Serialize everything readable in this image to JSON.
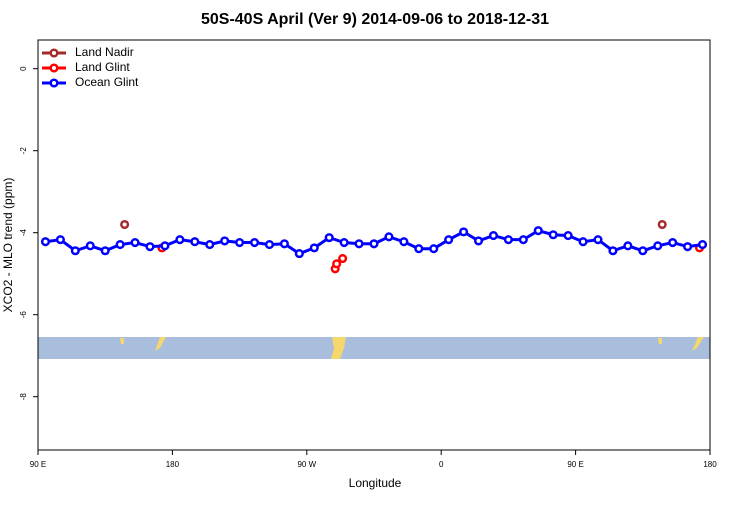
{
  "chart_data": {
    "type": "line",
    "title": "50S-40S April (Ver 9)   2014-09-06 to 2018-12-31",
    "x_label": "Longitude",
    "y_label": "XCO2 - MLO trend (ppm)",
    "xlim": [
      90,
      540
    ],
    "ylim": [
      -9.3,
      0.7
    ],
    "xticks": [
      {
        "value": 90,
        "label": "90 E"
      },
      180,
      {
        "value": 270,
        "label": "90 W"
      },
      {
        "value": 360,
        "label": "0"
      },
      {
        "value": 450,
        "label": "90 E"
      },
      {
        "value": 540,
        "label": "180"
      }
    ],
    "yticks": [
      0,
      -2,
      -4,
      -6,
      -8
    ],
    "legend": "top-left",
    "series": [
      {
        "name": "Land Nadir",
        "color": "#a52a2a",
        "line": false,
        "x": [
          148,
          508
        ],
        "values": [
          -3.8,
          -3.8
        ]
      },
      {
        "name": "Land Glint",
        "color": "#ff0000",
        "line": false,
        "x": [
          173,
          289,
          290,
          294,
          533
        ],
        "values": [
          -4.37,
          -4.88,
          -4.76,
          -4.63,
          -4.37
        ]
      },
      {
        "name": "Ocean Glint",
        "color": "#0000ff",
        "line": true,
        "x": [
          95,
          105,
          115,
          125,
          135,
          145,
          155,
          165,
          175,
          185,
          195,
          205,
          215,
          225,
          235,
          245,
          255,
          265,
          275,
          285,
          295,
          305,
          315,
          325,
          335,
          345,
          355,
          365,
          375,
          385,
          395,
          405,
          415,
          425,
          435,
          445,
          455,
          465,
          475,
          485,
          495,
          505,
          515,
          525,
          535
        ],
        "values": [
          -4.22,
          -4.17,
          -4.44,
          -4.32,
          -4.44,
          -4.29,
          -4.24,
          -4.34,
          -4.32,
          -4.17,
          -4.22,
          -4.29,
          -4.2,
          -4.24,
          -4.24,
          -4.29,
          -4.27,
          -4.51,
          -4.37,
          -4.12,
          -4.24,
          -4.27,
          -4.27,
          -4.1,
          -4.22,
          -4.39,
          -4.39,
          -4.17,
          -3.98,
          -4.2,
          -4.07,
          -4.17,
          -4.17,
          -3.95,
          -4.05,
          -4.07,
          -4.22,
          -4.17,
          -4.44,
          -4.32,
          -4.44,
          -4.32,
          -4.24,
          -4.34,
          -4.29
        ]
      }
    ]
  }
}
